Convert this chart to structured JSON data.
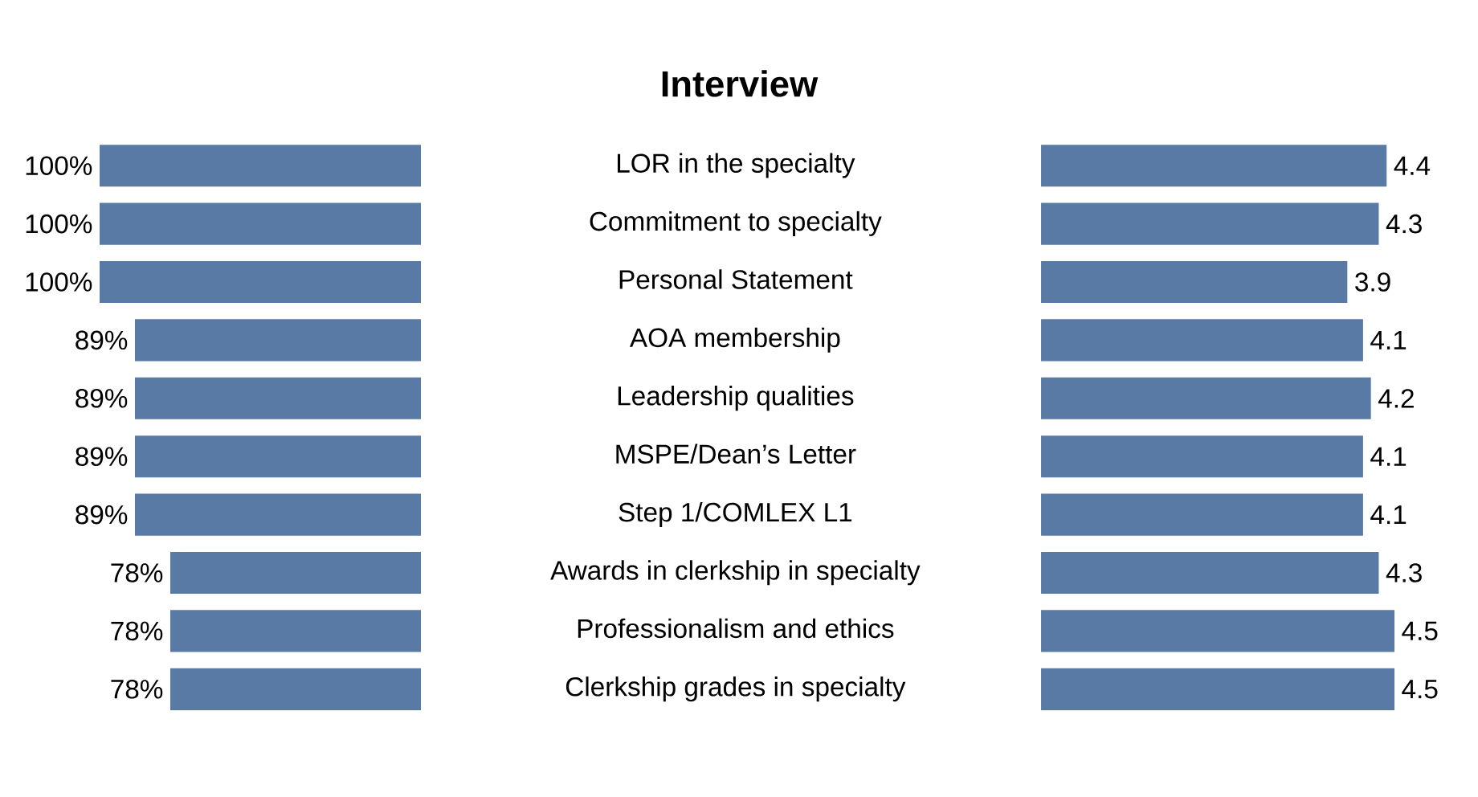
{
  "chart_data": [
    {
      "type": "bar",
      "orientation": "horizontal",
      "title": "Interview",
      "categories": [
        "LOR in the specialty",
        "Commitment to specialty",
        "Personal Statement",
        "AOA membership",
        "Leadership qualities",
        "MSPE/Dean’s Letter",
        "Step 1/COMLEX L1",
        "Awards in clerkship in specialty",
        "Professionalism and ethics",
        "Clerkship grades in specialty"
      ],
      "values": [
        100,
        100,
        100,
        89,
        89,
        89,
        89,
        78,
        78,
        78
      ],
      "value_labels": [
        "100%",
        "100%",
        "100%",
        "89%",
        "89%",
        "89%",
        "89%",
        "78%",
        "78%",
        "78%"
      ],
      "color": "#5a7aa6",
      "xlim": [
        100,
        0
      ],
      "tick_labels": "y"
    },
    {
      "type": "bar",
      "orientation": "horizontal",
      "categories": [
        null,
        null,
        null,
        null,
        null,
        null,
        null,
        null,
        null,
        null
      ],
      "values": [
        4.4,
        4.3,
        3.9,
        4.1,
        4.2,
        4.1,
        4.1,
        4.3,
        4.5,
        4.5
      ],
      "data_labels": true,
      "color": "#5a7aa6",
      "xlim": [
        0,
        4.5
      ],
      "tick_labels": false
    }
  ]
}
